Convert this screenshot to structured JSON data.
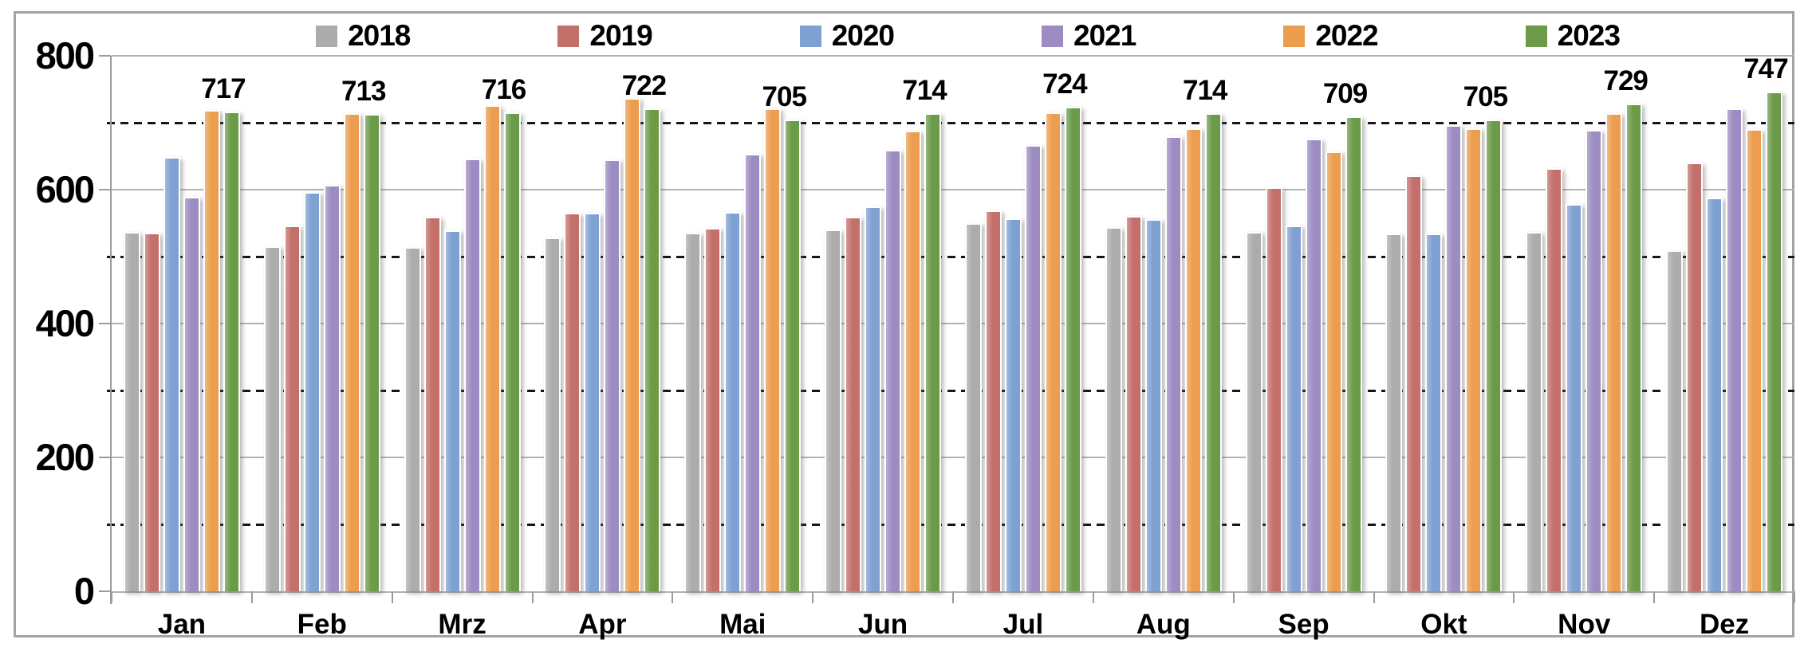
{
  "chart_data": {
    "type": "bar",
    "title": "",
    "xlabel": "",
    "ylabel": "",
    "ylim": [
      0,
      800
    ],
    "y_ticks": [
      0,
      200,
      400,
      600,
      800
    ],
    "minor_dotted_lines": [
      100,
      300,
      500,
      700
    ],
    "grid": "on",
    "legend_position": "top",
    "categories": [
      "Jan",
      "Feb",
      "Mrz",
      "Apr",
      "Mai",
      "Jun",
      "Jul",
      "Aug",
      "Sep",
      "Okt",
      "Nov",
      "Dez"
    ],
    "series": [
      {
        "name": "2018",
        "color": "#acacac",
        "values": [
          537,
          516,
          514,
          529,
          536,
          540,
          550,
          544,
          537,
          534,
          537,
          509
        ]
      },
      {
        "name": "2019",
        "color": "#c3706b",
        "values": [
          536,
          547,
          559,
          565,
          543,
          560,
          569,
          561,
          604,
          621,
          632,
          641
        ]
      },
      {
        "name": "2020",
        "color": "#7fa1d2",
        "values": [
          649,
          596,
          539,
          566,
          567,
          575,
          557,
          556,
          546,
          534,
          579,
          588
        ]
      },
      {
        "name": "2021",
        "color": "#9d8cc2",
        "values": [
          589,
          607,
          646,
          645,
          654,
          660,
          667,
          680,
          676,
          696,
          689,
          721
        ]
      },
      {
        "name": "2022",
        "color": "#ec9d4e",
        "values": [
          719,
          714,
          726,
          737,
          721,
          688,
          715,
          692,
          657,
          692,
          714,
          690
        ]
      },
      {
        "name": "2023",
        "color": "#6b9b49",
        "data_labels": true,
        "values": [
          717,
          713,
          716,
          722,
          705,
          714,
          724,
          714,
          709,
          705,
          729,
          747
        ]
      }
    ],
    "colors": {
      "solid_gridline": "#b2b2b2",
      "dotted_gridline": "#161616",
      "axis": "#9b9b9b",
      "frame_border": "#a3a3a3",
      "text": "#000000"
    }
  }
}
